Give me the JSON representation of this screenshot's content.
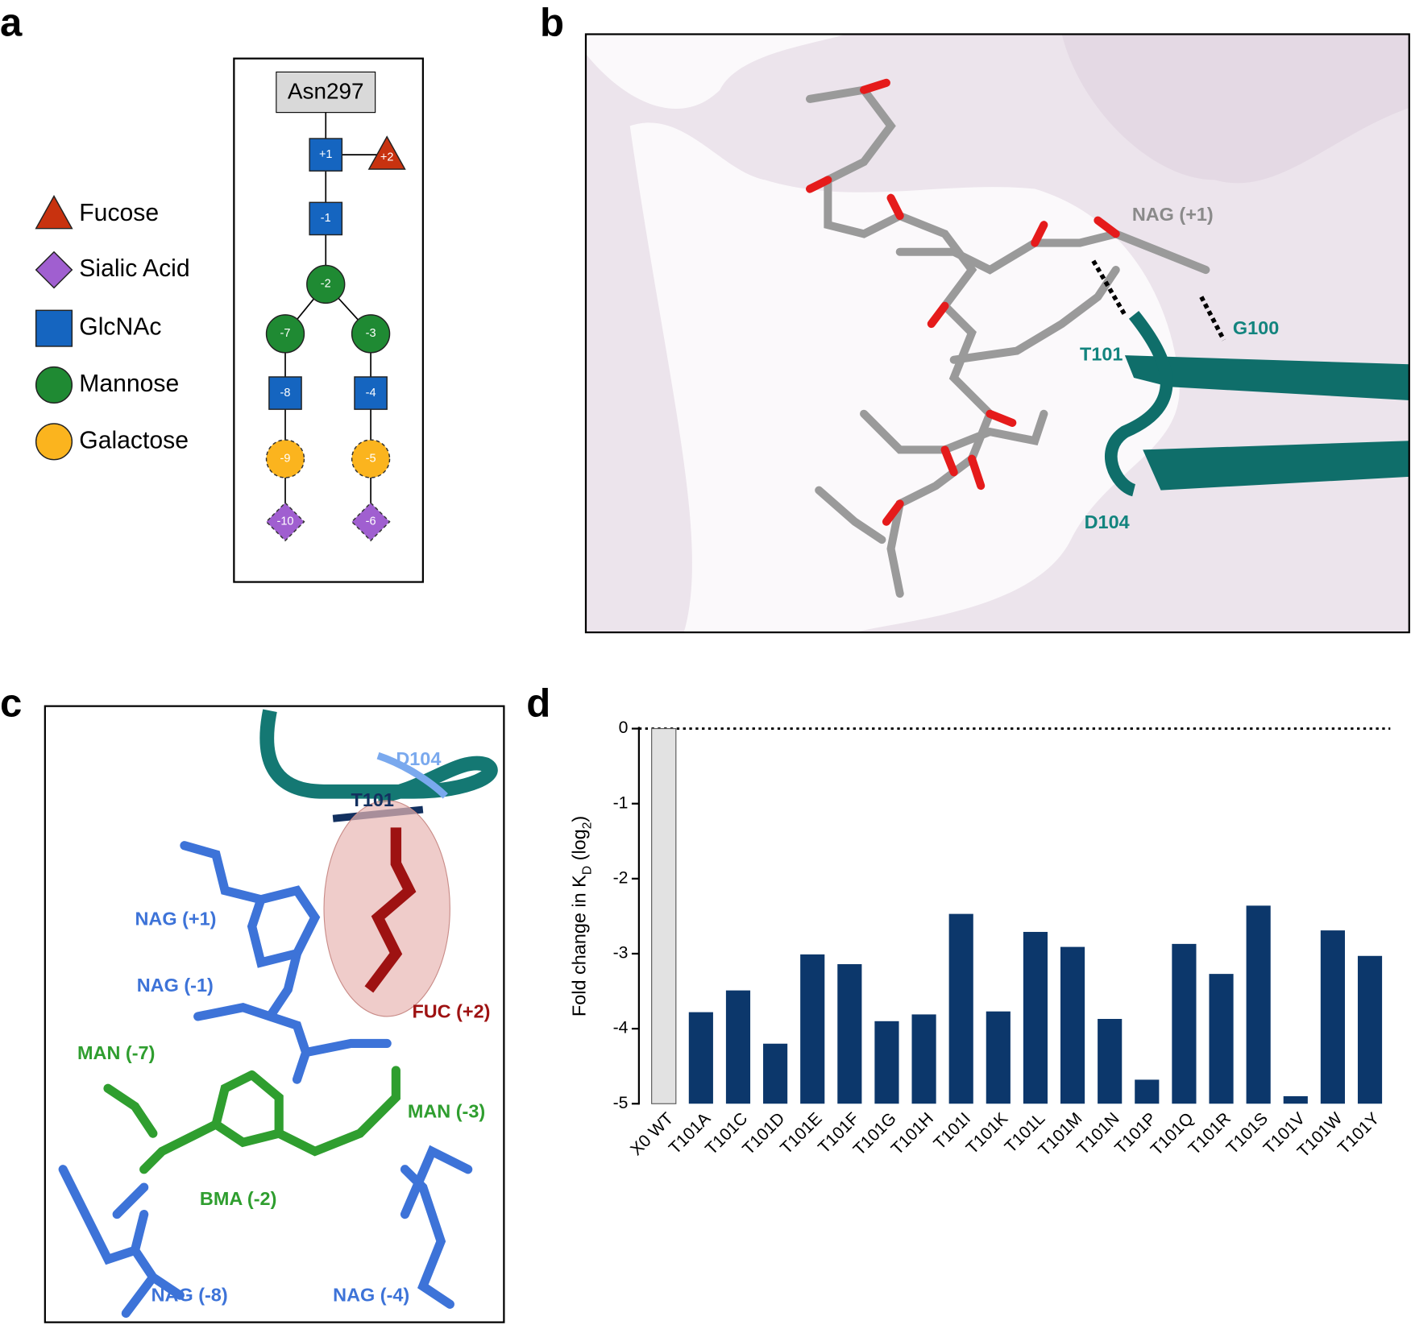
{
  "panel_labels": [
    "a",
    "b",
    "c",
    "d"
  ],
  "legend": [
    {
      "label": "Fucose",
      "color": "#c8320f"
    },
    {
      "label": "Sialic Acid",
      "color": "#a05fd0"
    },
    {
      "label": "GlcNAc",
      "color": "#1565c0"
    },
    {
      "label": "Mannose",
      "color": "#1f8a33"
    },
    {
      "label": "Galactose",
      "color": "#fbb41e"
    }
  ],
  "glycan": {
    "root": "Asn297",
    "nodes": [
      "+1",
      "+2",
      "-1",
      "-2",
      "-7",
      "-3",
      "-8",
      "-4",
      "-9",
      "-5",
      "-10",
      "-6"
    ]
  },
  "structure_b": {
    "labels": [
      "NAG (+1)",
      "G100",
      "T101",
      "D104"
    ]
  },
  "structure_c": {
    "labels": [
      "D104",
      "T101",
      "NAG (+1)",
      "NAG (-1)",
      "FUC (+2)",
      "MAN (-7)",
      "MAN (-3)",
      "BMA (-2)",
      "NAG (-8)",
      "NAG (-4)"
    ]
  },
  "chart_data": {
    "type": "bar",
    "y_label": [
      "Fold change in K",
      "D",
      " (log",
      "2",
      ")"
    ],
    "categories": [
      "X0 WT",
      "T101A",
      "T101C",
      "T101D",
      "T101E",
      "T101F",
      "T101G",
      "T101H",
      "T101I",
      "T101K",
      "T101L",
      "T101M",
      "T101N",
      "T101P",
      "T101Q",
      "T101R",
      "T101S",
      "T101V",
      "T101W",
      "T101Y"
    ],
    "values": [
      0,
      -3.78,
      -3.49,
      -4.2,
      -3.01,
      -3.14,
      -3.9,
      -3.81,
      -2.47,
      -3.77,
      -2.71,
      -2.91,
      -3.87,
      -4.68,
      -2.87,
      -3.27,
      -2.36,
      -4.9,
      -2.69,
      -3.03
    ],
    "colors": [
      "#e2e2e2",
      "#0c376b",
      "#0c376b",
      "#0c376b",
      "#0c376b",
      "#0c376b",
      "#0c376b",
      "#0c376b",
      "#0c376b",
      "#0c376b",
      "#0c376b",
      "#0c376b",
      "#0c376b",
      "#0c376b",
      "#0c376b",
      "#0c376b",
      "#0c376b",
      "#0c376b",
      "#0c376b",
      "#0c376b"
    ],
    "ylim": [
      -5,
      0
    ],
    "yticks": [
      0,
      -1,
      -2,
      -3,
      -4,
      -5
    ]
  }
}
